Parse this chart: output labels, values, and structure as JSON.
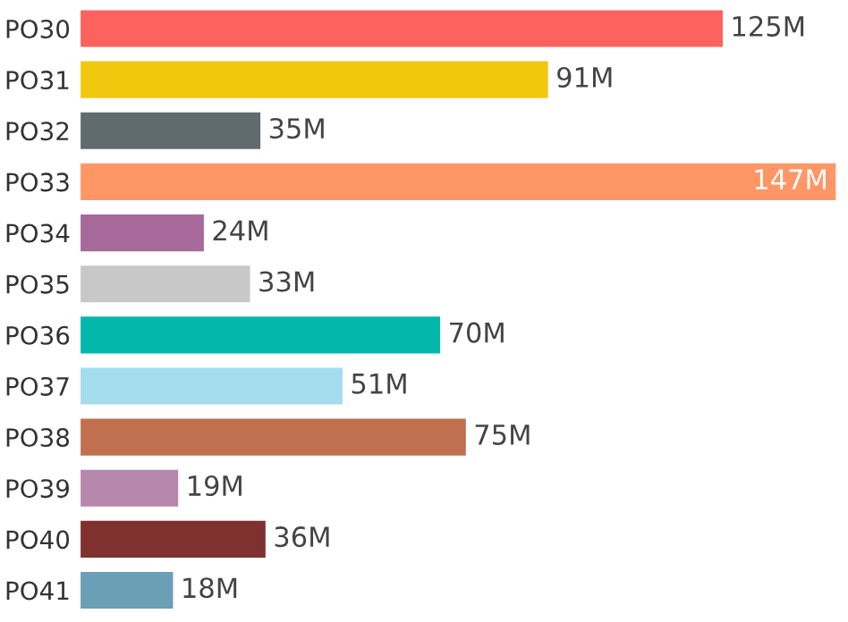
{
  "chart_data": {
    "type": "bar",
    "orientation": "horizontal",
    "categories": [
      "PO30",
      "PO31",
      "PO32",
      "PO33",
      "PO34",
      "PO35",
      "PO36",
      "PO37",
      "PO38",
      "PO39",
      "PO40",
      "PO41"
    ],
    "values": [
      125,
      91,
      35,
      147,
      24,
      33,
      70,
      51,
      75,
      19,
      36,
      18
    ],
    "value_labels": [
      "125M",
      "91M",
      "35M",
      "147M",
      "24M",
      "33M",
      "70M",
      "51M",
      "75M",
      "19M",
      "36M",
      "18M"
    ],
    "colors": [
      "#fd625e",
      "#f2c80f",
      "#5f6b6d",
      "#fe9666",
      "#a66999",
      "#c8c8c8",
      "#01b8aa",
      "#a4ddee",
      "#c0704f",
      "#b887ad",
      "#7f312f",
      "#6b9fb5"
    ],
    "grid": false,
    "legend": false
  }
}
